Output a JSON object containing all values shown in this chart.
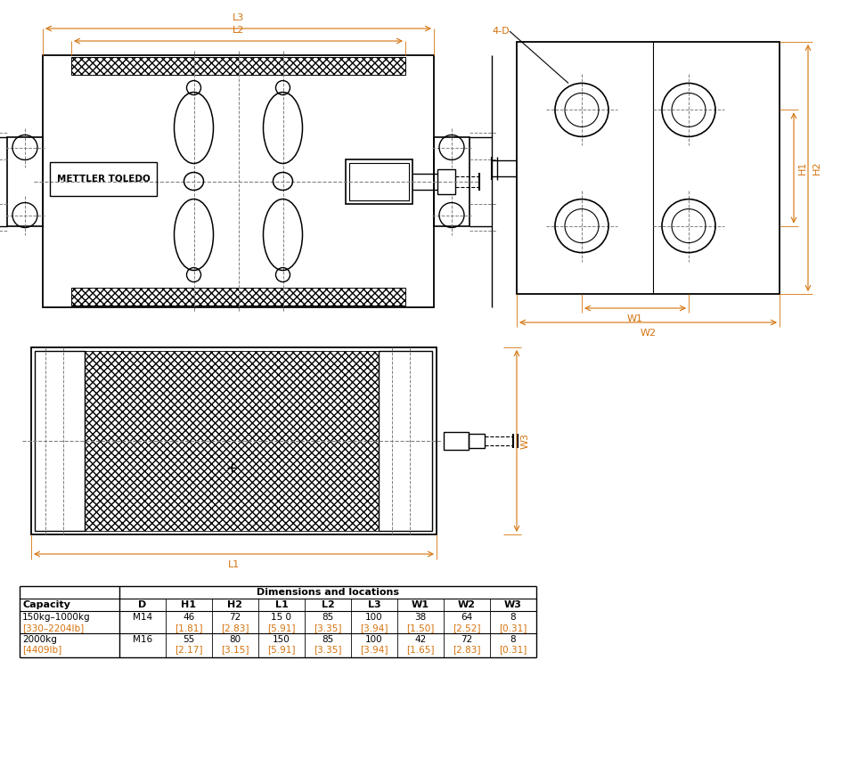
{
  "bg_color": "#ffffff",
  "line_color": "#000000",
  "dim_color": "#d4720c",
  "gray_color": "#808080",
  "table_header": "Dimensions and locations",
  "col_headers": [
    "D",
    "H1",
    "H2",
    "L1",
    "L2",
    "L3",
    "W1",
    "W2",
    "W3"
  ],
  "row1_capacity_black": "150kg–1000kg",
  "row1_capacity_orange": "[330–2204lb]",
  "row1_vals_black": [
    "M14",
    "46",
    "72",
    "15 0",
    "85",
    "100",
    "38",
    "64",
    "8"
  ],
  "row1_vals_orange": [
    "",
    "[1.81]",
    "[2.83]",
    "[5.91]",
    "[3.35]",
    "[3.94]",
    "[1.50]",
    "[2.52]",
    "[0.31]"
  ],
  "row2_capacity_black": "2000kg",
  "row2_capacity_orange": "[4409lb]",
  "row2_vals_black": [
    "M16",
    "55",
    "80",
    "150",
    "85",
    "100",
    "42",
    "72",
    "8"
  ],
  "row2_vals_orange": [
    "",
    "[2.17]",
    "[3.15]",
    "[5.91]",
    "[3.35]",
    "[3.94]",
    "[1.65]",
    "[2.83]",
    "[0.31]"
  ]
}
